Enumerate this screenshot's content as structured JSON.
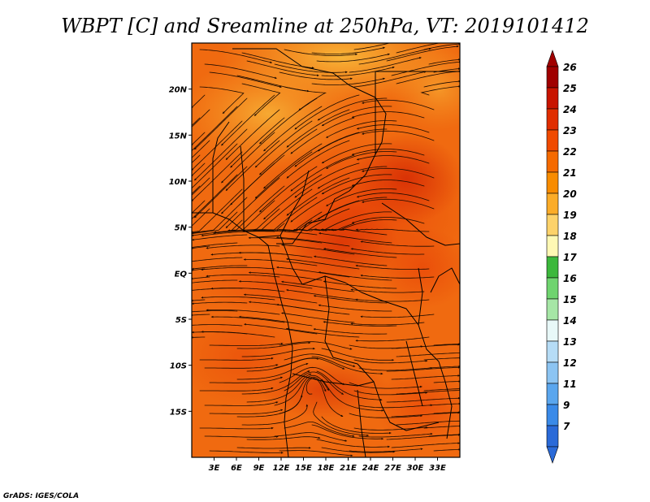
{
  "title": "WBPT [C] and Sreamline at 250hPa, VT: 2019101412",
  "credit": "GrADS: IGES/COLA",
  "map": {
    "lon_range": [
      0,
      36
    ],
    "lat_range": [
      -20,
      25
    ],
    "lon_ticks": [
      {
        "value": 3,
        "label": "3E"
      },
      {
        "value": 6,
        "label": "6E"
      },
      {
        "value": 9,
        "label": "9E"
      },
      {
        "value": 12,
        "label": "12E"
      },
      {
        "value": 15,
        "label": "15E"
      },
      {
        "value": 18,
        "label": "18E"
      },
      {
        "value": 21,
        "label": "21E"
      },
      {
        "value": 24,
        "label": "24E"
      },
      {
        "value": 27,
        "label": "27E"
      },
      {
        "value": 30,
        "label": "30E"
      },
      {
        "value": 33,
        "label": "33E"
      }
    ],
    "lat_ticks": [
      {
        "value": 20,
        "label": "20N"
      },
      {
        "value": 15,
        "label": "15N"
      },
      {
        "value": 10,
        "label": "10N"
      },
      {
        "value": 5,
        "label": "5N"
      },
      {
        "value": 0,
        "label": "EQ"
      },
      {
        "value": -5,
        "label": "5S"
      },
      {
        "value": -10,
        "label": "10S"
      },
      {
        "value": -15,
        "label": "15S"
      }
    ],
    "colors": {
      "field_base": "#f06a10",
      "warm_core": "#e84408",
      "hot_core": "#d83005",
      "cool_north": "#f5a028",
      "cooler_north": "#f8b83a",
      "streamline": "#1a0a00",
      "border": "#000000"
    }
  },
  "colorbar": {
    "labels": [
      "26",
      "25",
      "24",
      "23",
      "22",
      "21",
      "20",
      "19",
      "18",
      "17",
      "16",
      "15",
      "14",
      "13",
      "12",
      "11",
      "9",
      "7"
    ],
    "colors": [
      "#a00000",
      "#c81400",
      "#e02d00",
      "#f04a00",
      "#f56a00",
      "#f88c00",
      "#fbac28",
      "#fdd26a",
      "#fef8b4",
      "#3cb83c",
      "#6fd46f",
      "#a6e6a6",
      "#e8f8f8",
      "#b6dcf6",
      "#8cc4f2",
      "#5aa6ee",
      "#3a8ae8",
      "#2a6ad8"
    ]
  }
}
